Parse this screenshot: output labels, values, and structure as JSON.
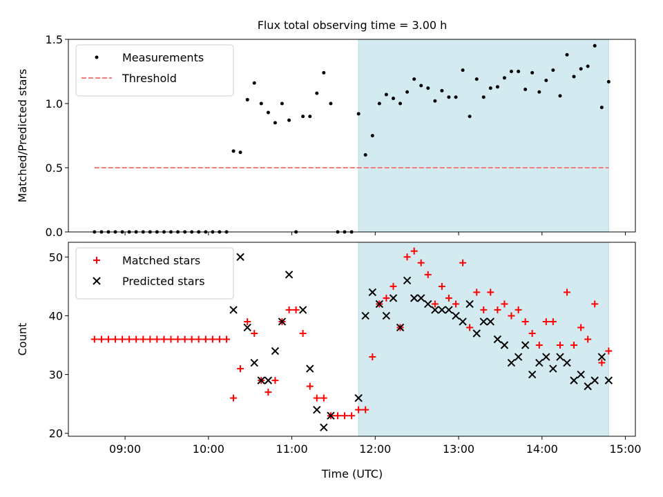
{
  "chart_data": {
    "title": "Flux total observing time = 3.00 h",
    "xlabel": "Time (UTC)",
    "xlim_hours": [
      8.32,
      15.12
    ],
    "x_ticks": [
      {
        "t": 9,
        "label": "09:00"
      },
      {
        "t": 10,
        "label": "10:00"
      },
      {
        "t": 11,
        "label": "11:00"
      },
      {
        "t": 12,
        "label": "12:00"
      },
      {
        "t": 13,
        "label": "13:00"
      },
      {
        "t": 14,
        "label": "14:00"
      },
      {
        "t": 15,
        "label": "15:00"
      }
    ],
    "shaded_region_hours": [
      11.8,
      14.8
    ],
    "shade_color": "#d3eaf0",
    "charts": [
      {
        "type": "scatter",
        "ylabel": "Matched/Predicted stars",
        "ylim": [
          0,
          1.5
        ],
        "y_ticks": [
          {
            "v": 0,
            "label": "0.0"
          },
          {
            "v": 0.5,
            "label": "0.5"
          },
          {
            "v": 1.0,
            "label": "1.0"
          },
          {
            "v": 1.5,
            "label": "1.5"
          }
        ],
        "legend_position": "upper-left",
        "threshold": {
          "name": "Threshold",
          "value": 0.5,
          "x_range": [
            8.633,
            14.8
          ],
          "color": "#f47a7a"
        },
        "series": [
          {
            "name": "Measurements",
            "marker": "dot",
            "color": "#000000",
            "points": [
              [
                8.633,
                0
              ],
              [
                8.717,
                0
              ],
              [
                8.8,
                0
              ],
              [
                8.883,
                0
              ],
              [
                8.967,
                0
              ],
              [
                9.05,
                0
              ],
              [
                9.133,
                0
              ],
              [
                9.217,
                0
              ],
              [
                9.3,
                0
              ],
              [
                9.383,
                0
              ],
              [
                9.467,
                0
              ],
              [
                9.55,
                0
              ],
              [
                9.633,
                0
              ],
              [
                9.717,
                0
              ],
              [
                9.8,
                0
              ],
              [
                9.883,
                0
              ],
              [
                9.967,
                0
              ],
              [
                10.05,
                0
              ],
              [
                10.133,
                0
              ],
              [
                10.217,
                0
              ],
              [
                10.3,
                0.63
              ],
              [
                10.383,
                0.62
              ],
              [
                10.467,
                1.03
              ],
              [
                10.55,
                1.16
              ],
              [
                10.633,
                1.0
              ],
              [
                10.717,
                0.93
              ],
              [
                10.8,
                0.85
              ],
              [
                10.883,
                1.0
              ],
              [
                10.967,
                0.87
              ],
              [
                11.05,
                0
              ],
              [
                11.133,
                0.9
              ],
              [
                11.217,
                0.9
              ],
              [
                11.3,
                1.08
              ],
              [
                11.383,
                1.24
              ],
              [
                11.467,
                1.0
              ],
              [
                11.55,
                0
              ],
              [
                11.633,
                0
              ],
              [
                11.717,
                0
              ],
              [
                11.8,
                0.92
              ],
              [
                11.883,
                0.6
              ],
              [
                11.967,
                0.75
              ],
              [
                12.05,
                1.0
              ],
              [
                12.133,
                1.07
              ],
              [
                12.217,
                1.04
              ],
              [
                12.3,
                1.0
              ],
              [
                12.383,
                1.09
              ],
              [
                12.467,
                1.19
              ],
              [
                12.55,
                1.14
              ],
              [
                12.633,
                1.12
              ],
              [
                12.717,
                1.02
              ],
              [
                12.8,
                1.1
              ],
              [
                12.883,
                1.05
              ],
              [
                12.967,
                1.05
              ],
              [
                13.05,
                1.26
              ],
              [
                13.133,
                0.9
              ],
              [
                13.217,
                1.19
              ],
              [
                13.3,
                1.05
              ],
              [
                13.383,
                1.12
              ],
              [
                13.467,
                1.13
              ],
              [
                13.55,
                1.2
              ],
              [
                13.633,
                1.25
              ],
              [
                13.717,
                1.25
              ],
              [
                13.8,
                1.11
              ],
              [
                13.883,
                1.24
              ],
              [
                13.967,
                1.09
              ],
              [
                14.05,
                1.18
              ],
              [
                14.133,
                1.26
              ],
              [
                14.217,
                1.06
              ],
              [
                14.3,
                1.38
              ],
              [
                14.383,
                1.21
              ],
              [
                14.467,
                1.27
              ],
              [
                14.55,
                1.29
              ],
              [
                14.633,
                1.45
              ],
              [
                14.717,
                0.97
              ],
              [
                14.8,
                1.17
              ]
            ]
          }
        ]
      },
      {
        "type": "scatter",
        "ylabel": "Count",
        "ylim": [
          19.5,
          52.5
        ],
        "y_ticks": [
          {
            "v": 20,
            "label": "20"
          },
          {
            "v": 30,
            "label": "30"
          },
          {
            "v": 40,
            "label": "40"
          },
          {
            "v": 50,
            "label": "50"
          }
        ],
        "legend_position": "upper-left",
        "series": [
          {
            "name": "Matched stars",
            "marker": "plus",
            "color": "#ff0000",
            "points": [
              [
                8.633,
                36
              ],
              [
                8.717,
                36
              ],
              [
                8.8,
                36
              ],
              [
                8.883,
                36
              ],
              [
                8.967,
                36
              ],
              [
                9.05,
                36
              ],
              [
                9.133,
                36
              ],
              [
                9.217,
                36
              ],
              [
                9.3,
                36
              ],
              [
                9.383,
                36
              ],
              [
                9.467,
                36
              ],
              [
                9.55,
                36
              ],
              [
                9.633,
                36
              ],
              [
                9.717,
                36
              ],
              [
                9.8,
                36
              ],
              [
                9.883,
                36
              ],
              [
                9.967,
                36
              ],
              [
                10.05,
                36
              ],
              [
                10.133,
                36
              ],
              [
                10.217,
                36
              ],
              [
                10.3,
                26
              ],
              [
                10.383,
                31
              ],
              [
                10.467,
                39
              ],
              [
                10.55,
                37
              ],
              [
                10.633,
                29
              ],
              [
                10.717,
                27
              ],
              [
                10.8,
                29
              ],
              [
                10.883,
                39
              ],
              [
                10.967,
                41
              ],
              [
                11.05,
                41
              ],
              [
                11.133,
                37
              ],
              [
                11.217,
                28
              ],
              [
                11.3,
                26
              ],
              [
                11.383,
                26
              ],
              [
                11.467,
                23
              ],
              [
                11.55,
                23
              ],
              [
                11.633,
                23
              ],
              [
                11.717,
                23
              ],
              [
                11.8,
                24
              ],
              [
                11.883,
                24
              ],
              [
                11.967,
                33
              ],
              [
                12.05,
                42
              ],
              [
                12.133,
                43
              ],
              [
                12.217,
                45
              ],
              [
                12.3,
                38
              ],
              [
                12.383,
                50
              ],
              [
                12.467,
                51
              ],
              [
                12.55,
                49
              ],
              [
                12.633,
                47
              ],
              [
                12.717,
                42
              ],
              [
                12.8,
                45
              ],
              [
                12.883,
                43
              ],
              [
                12.967,
                42
              ],
              [
                13.05,
                49
              ],
              [
                13.133,
                38
              ],
              [
                13.217,
                44
              ],
              [
                13.3,
                41
              ],
              [
                13.383,
                44
              ],
              [
                13.467,
                41
              ],
              [
                13.55,
                42
              ],
              [
                13.633,
                40
              ],
              [
                13.717,
                41
              ],
              [
                13.8,
                39
              ],
              [
                13.883,
                37
              ],
              [
                13.967,
                35
              ],
              [
                14.05,
                39
              ],
              [
                14.133,
                39
              ],
              [
                14.217,
                35
              ],
              [
                14.3,
                44
              ],
              [
                14.383,
                35
              ],
              [
                14.467,
                38
              ],
              [
                14.55,
                36
              ],
              [
                14.633,
                42
              ],
              [
                14.717,
                32
              ],
              [
                14.8,
                34
              ]
            ]
          },
          {
            "name": "Predicted stars",
            "marker": "x",
            "color": "#000000",
            "points": [
              [
                10.3,
                41
              ],
              [
                10.383,
                50
              ],
              [
                10.467,
                38
              ],
              [
                10.55,
                32
              ],
              [
                10.633,
                29
              ],
              [
                10.717,
                29
              ],
              [
                10.8,
                34
              ],
              [
                10.883,
                39
              ],
              [
                10.967,
                47
              ],
              [
                11.133,
                41
              ],
              [
                11.217,
                31
              ],
              [
                11.3,
                24
              ],
              [
                11.383,
                21
              ],
              [
                11.467,
                23
              ],
              [
                11.8,
                26
              ],
              [
                11.883,
                40
              ],
              [
                11.967,
                44
              ],
              [
                12.05,
                42
              ],
              [
                12.133,
                40
              ],
              [
                12.217,
                43
              ],
              [
                12.3,
                38
              ],
              [
                12.383,
                46
              ],
              [
                12.467,
                43
              ],
              [
                12.55,
                43
              ],
              [
                12.633,
                42
              ],
              [
                12.717,
                41
              ],
              [
                12.8,
                41
              ],
              [
                12.883,
                41
              ],
              [
                12.967,
                40
              ],
              [
                13.05,
                39
              ],
              [
                13.133,
                42
              ],
              [
                13.217,
                37
              ],
              [
                13.3,
                39
              ],
              [
                13.383,
                39
              ],
              [
                13.467,
                36
              ],
              [
                13.55,
                35
              ],
              [
                13.633,
                32
              ],
              [
                13.717,
                33
              ],
              [
                13.8,
                35
              ],
              [
                13.883,
                30
              ],
              [
                13.967,
                32
              ],
              [
                14.05,
                33
              ],
              [
                14.133,
                31
              ],
              [
                14.217,
                33
              ],
              [
                14.3,
                32
              ],
              [
                14.383,
                29
              ],
              [
                14.467,
                30
              ],
              [
                14.55,
                28
              ],
              [
                14.633,
                29
              ],
              [
                14.717,
                33
              ],
              [
                14.8,
                29
              ]
            ]
          }
        ]
      }
    ]
  }
}
